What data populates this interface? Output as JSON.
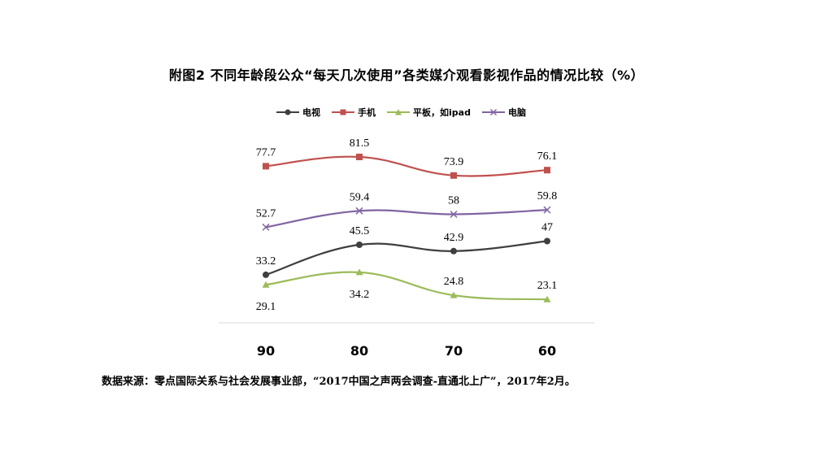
{
  "title": "附图2 不同年龄段公众“每天几次使用”各类媒介观看影视作品的情况比较（%）",
  "source": "数据来源：零点国际关系与社会发展事业部，“2017中国之声两会调查-直通北上广”，2017年2月。",
  "chart_data": {
    "type": "line",
    "categories": [
      "90",
      "80",
      "70",
      "60"
    ],
    "series": [
      {
        "name": "电视",
        "values": [
          33.2,
          45.5,
          42.9,
          47
        ],
        "color": "#3f3f3f",
        "marker": "circle"
      },
      {
        "name": "手机",
        "values": [
          77.7,
          81.5,
          73.9,
          76.1
        ],
        "color": "#c0504d",
        "marker": "square"
      },
      {
        "name": "平板，如ipad",
        "values": [
          29.1,
          34.2,
          24.8,
          23.1
        ],
        "color": "#9bbb59",
        "marker": "triangle"
      },
      {
        "name": "电脑",
        "values": [
          52.7,
          59.4,
          58,
          59.8
        ],
        "color": "#8064a2",
        "marker": "x"
      }
    ],
    "legend_position": "top",
    "smooth": true,
    "grid": false
  }
}
